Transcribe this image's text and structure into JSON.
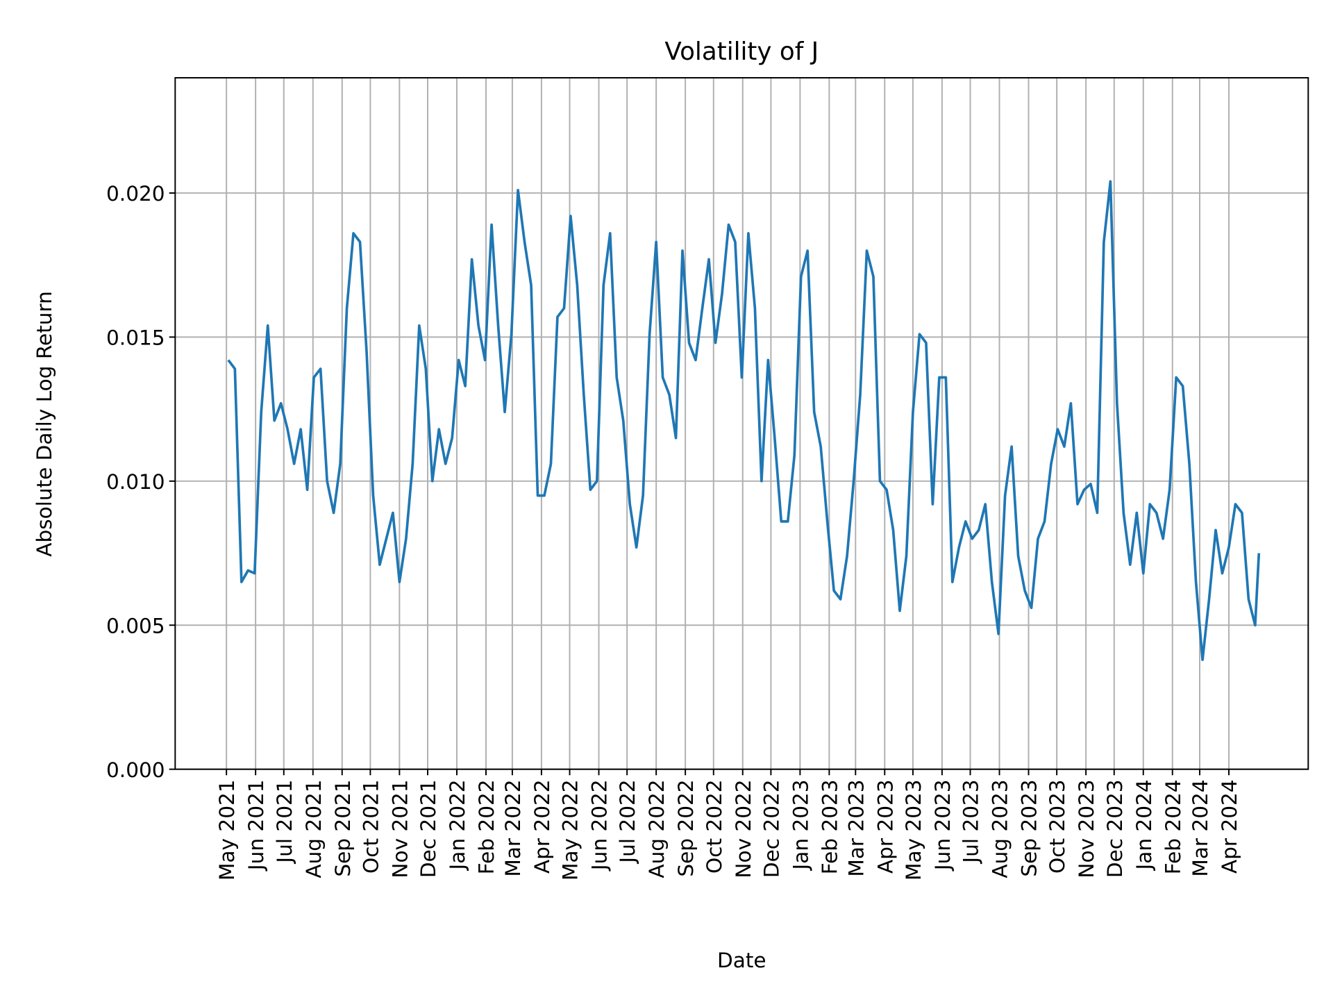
{
  "chart_data": {
    "type": "line",
    "title": "Volatility of J",
    "xlabel": "Date",
    "ylabel": "Absolute Daily Log Return",
    "ylim": [
      0,
      0.024
    ],
    "yticks": [
      "0.000",
      "0.005",
      "0.010",
      "0.015",
      "0.020"
    ],
    "grid": true,
    "line_color": "#1f77b4",
    "xticks": [
      {
        "date": "2021-05-01",
        "label": "May 2021"
      },
      {
        "date": "2021-06-01",
        "label": "Jun 2021"
      },
      {
        "date": "2021-07-01",
        "label": "Jul 2021"
      },
      {
        "date": "2021-08-01",
        "label": "Aug 2021"
      },
      {
        "date": "2021-09-01",
        "label": "Sep 2021"
      },
      {
        "date": "2021-10-01",
        "label": "Oct 2021"
      },
      {
        "date": "2021-11-01",
        "label": "Nov 2021"
      },
      {
        "date": "2021-12-01",
        "label": "Dec 2021"
      },
      {
        "date": "2022-01-01",
        "label": "Jan 2022"
      },
      {
        "date": "2022-02-01",
        "label": "Feb 2022"
      },
      {
        "date": "2022-03-01",
        "label": "Mar 2022"
      },
      {
        "date": "2022-04-01",
        "label": "Apr 2022"
      },
      {
        "date": "2022-05-01",
        "label": "May 2022"
      },
      {
        "date": "2022-06-01",
        "label": "Jun 2022"
      },
      {
        "date": "2022-07-01",
        "label": "Jul 2022"
      },
      {
        "date": "2022-08-01",
        "label": "Aug 2022"
      },
      {
        "date": "2022-09-01",
        "label": "Sep 2022"
      },
      {
        "date": "2022-10-01",
        "label": "Oct 2022"
      },
      {
        "date": "2022-11-01",
        "label": "Nov 2022"
      },
      {
        "date": "2022-12-01",
        "label": "Dec 2022"
      },
      {
        "date": "2023-01-01",
        "label": "Jan 2023"
      },
      {
        "date": "2023-02-01",
        "label": "Feb 2023"
      },
      {
        "date": "2023-03-01",
        "label": "Mar 2023"
      },
      {
        "date": "2023-04-01",
        "label": "Apr 2023"
      },
      {
        "date": "2023-05-01",
        "label": "May 2023"
      },
      {
        "date": "2023-06-01",
        "label": "Jun 2023"
      },
      {
        "date": "2023-07-01",
        "label": "Jul 2023"
      },
      {
        "date": "2023-08-01",
        "label": "Aug 2023"
      },
      {
        "date": "2023-09-01",
        "label": "Sep 2023"
      },
      {
        "date": "2023-10-01",
        "label": "Oct 2023"
      },
      {
        "date": "2023-11-01",
        "label": "Nov 2023"
      },
      {
        "date": "2023-12-01",
        "label": "Dec 2023"
      },
      {
        "date": "2024-01-01",
        "label": "Jan 2024"
      },
      {
        "date": "2024-02-01",
        "label": "Feb 2024"
      },
      {
        "date": "2024-03-01",
        "label": "Mar 2024"
      },
      {
        "date": "2024-04-01",
        "label": "Apr 2024"
      }
    ],
    "x": [
      "2021-05-03",
      "2021-05-10",
      "2021-05-17",
      "2021-05-24",
      "2021-05-31",
      "2021-06-07",
      "2021-06-14",
      "2021-06-21",
      "2021-06-28",
      "2021-07-05",
      "2021-07-12",
      "2021-07-19",
      "2021-07-26",
      "2021-08-02",
      "2021-08-09",
      "2021-08-16",
      "2021-08-23",
      "2021-08-30",
      "2021-09-06",
      "2021-09-13",
      "2021-09-20",
      "2021-09-27",
      "2021-10-04",
      "2021-10-11",
      "2021-10-18",
      "2021-10-25",
      "2021-11-01",
      "2021-11-08",
      "2021-11-15",
      "2021-11-22",
      "2021-11-29",
      "2021-12-06",
      "2021-12-13",
      "2021-12-20",
      "2021-12-27",
      "2022-01-03",
      "2022-01-10",
      "2022-01-17",
      "2022-01-24",
      "2022-01-31",
      "2022-02-07",
      "2022-02-14",
      "2022-02-21",
      "2022-02-28",
      "2022-03-07",
      "2022-03-14",
      "2022-03-21",
      "2022-03-28",
      "2022-04-04",
      "2022-04-11",
      "2022-04-18",
      "2022-04-25",
      "2022-05-02",
      "2022-05-09",
      "2022-05-16",
      "2022-05-23",
      "2022-05-30",
      "2022-06-06",
      "2022-06-13",
      "2022-06-20",
      "2022-06-27",
      "2022-07-04",
      "2022-07-11",
      "2022-07-18",
      "2022-07-25",
      "2022-08-01",
      "2022-08-08",
      "2022-08-15",
      "2022-08-22",
      "2022-08-29",
      "2022-09-05",
      "2022-09-12",
      "2022-09-19",
      "2022-09-26",
      "2022-10-03",
      "2022-10-10",
      "2022-10-17",
      "2022-10-24",
      "2022-10-31",
      "2022-11-07",
      "2022-11-14",
      "2022-11-21",
      "2022-11-28",
      "2022-12-05",
      "2022-12-12",
      "2022-12-19",
      "2022-12-26",
      "2023-01-02",
      "2023-01-09",
      "2023-01-16",
      "2023-01-23",
      "2023-01-30",
      "2023-02-06",
      "2023-02-13",
      "2023-02-20",
      "2023-02-27",
      "2023-03-06",
      "2023-03-13",
      "2023-03-20",
      "2023-03-27",
      "2023-04-03",
      "2023-04-10",
      "2023-04-17",
      "2023-04-24",
      "2023-05-01",
      "2023-05-08",
      "2023-05-15",
      "2023-05-22",
      "2023-05-29",
      "2023-06-05",
      "2023-06-12",
      "2023-06-19",
      "2023-06-26",
      "2023-07-03",
      "2023-07-10",
      "2023-07-17",
      "2023-07-24",
      "2023-07-31",
      "2023-08-07",
      "2023-08-14",
      "2023-08-21",
      "2023-08-28",
      "2023-09-04",
      "2023-09-11",
      "2023-09-18",
      "2023-09-25",
      "2023-10-02",
      "2023-10-09",
      "2023-10-16",
      "2023-10-23",
      "2023-10-30",
      "2023-11-06",
      "2023-11-13",
      "2023-11-20",
      "2023-11-27",
      "2023-12-04",
      "2023-12-11",
      "2023-12-18",
      "2023-12-25",
      "2024-01-01",
      "2024-01-08",
      "2024-01-15",
      "2024-01-22",
      "2024-01-29",
      "2024-02-05",
      "2024-02-12",
      "2024-02-19",
      "2024-02-26",
      "2024-03-04",
      "2024-03-11",
      "2024-03-18",
      "2024-03-25",
      "2024-04-01",
      "2024-04-08",
      "2024-04-15",
      "2024-04-22",
      "2024-04-29",
      "2024-05-03"
    ],
    "values": [
      0.0142,
      0.0139,
      0.0065,
      0.0069,
      0.0068,
      0.0124,
      0.0154,
      0.0121,
      0.0127,
      0.0118,
      0.0106,
      0.0118,
      0.0097,
      0.0136,
      0.0139,
      0.01,
      0.0089,
      0.0106,
      0.016,
      0.0186,
      0.0183,
      0.0145,
      0.0095,
      0.0071,
      0.008,
      0.0089,
      0.0065,
      0.008,
      0.0106,
      0.0154,
      0.0139,
      0.01,
      0.0118,
      0.0106,
      0.0115,
      0.0142,
      0.0133,
      0.0177,
      0.0154,
      0.0142,
      0.0189,
      0.0154,
      0.0124,
      0.0151,
      0.0201,
      0.0183,
      0.0168,
      0.0095,
      0.0095,
      0.0106,
      0.0157,
      0.016,
      0.0192,
      0.0168,
      0.013,
      0.0097,
      0.01,
      0.0168,
      0.0186,
      0.0136,
      0.0121,
      0.0092,
      0.0077,
      0.0095,
      0.0151,
      0.0183,
      0.0136,
      0.013,
      0.0115,
      0.018,
      0.0148,
      0.0142,
      0.016,
      0.0177,
      0.0148,
      0.0165,
      0.0189,
      0.0183,
      0.0136,
      0.0186,
      0.016,
      0.01,
      0.0142,
      0.0115,
      0.0086,
      0.0086,
      0.0109,
      0.0171,
      0.018,
      0.0124,
      0.0112,
      0.0086,
      0.0062,
      0.0059,
      0.0074,
      0.01,
      0.013,
      0.018,
      0.0171,
      0.01,
      0.0097,
      0.0083,
      0.0055,
      0.0074,
      0.0124,
      0.0151,
      0.0148,
      0.0092,
      0.0136,
      0.0136,
      0.0065,
      0.0077,
      0.0086,
      0.008,
      0.0083,
      0.0092,
      0.0065,
      0.0047,
      0.0095,
      0.0112,
      0.0074,
      0.0062,
      0.0056,
      0.008,
      0.0086,
      0.0106,
      0.0118,
      0.0112,
      0.0127,
      0.0092,
      0.0097,
      0.0099,
      0.0089,
      0.0183,
      0.0204,
      0.0127,
      0.0089,
      0.0071,
      0.0089,
      0.0068,
      0.0092,
      0.0089,
      0.008,
      0.0097,
      0.0136,
      0.0133,
      0.0106,
      0.0065,
      0.0038,
      0.0059,
      0.0083,
      0.0068,
      0.0077,
      0.0092,
      0.0089,
      0.0059,
      0.005,
      0.0075
    ]
  }
}
